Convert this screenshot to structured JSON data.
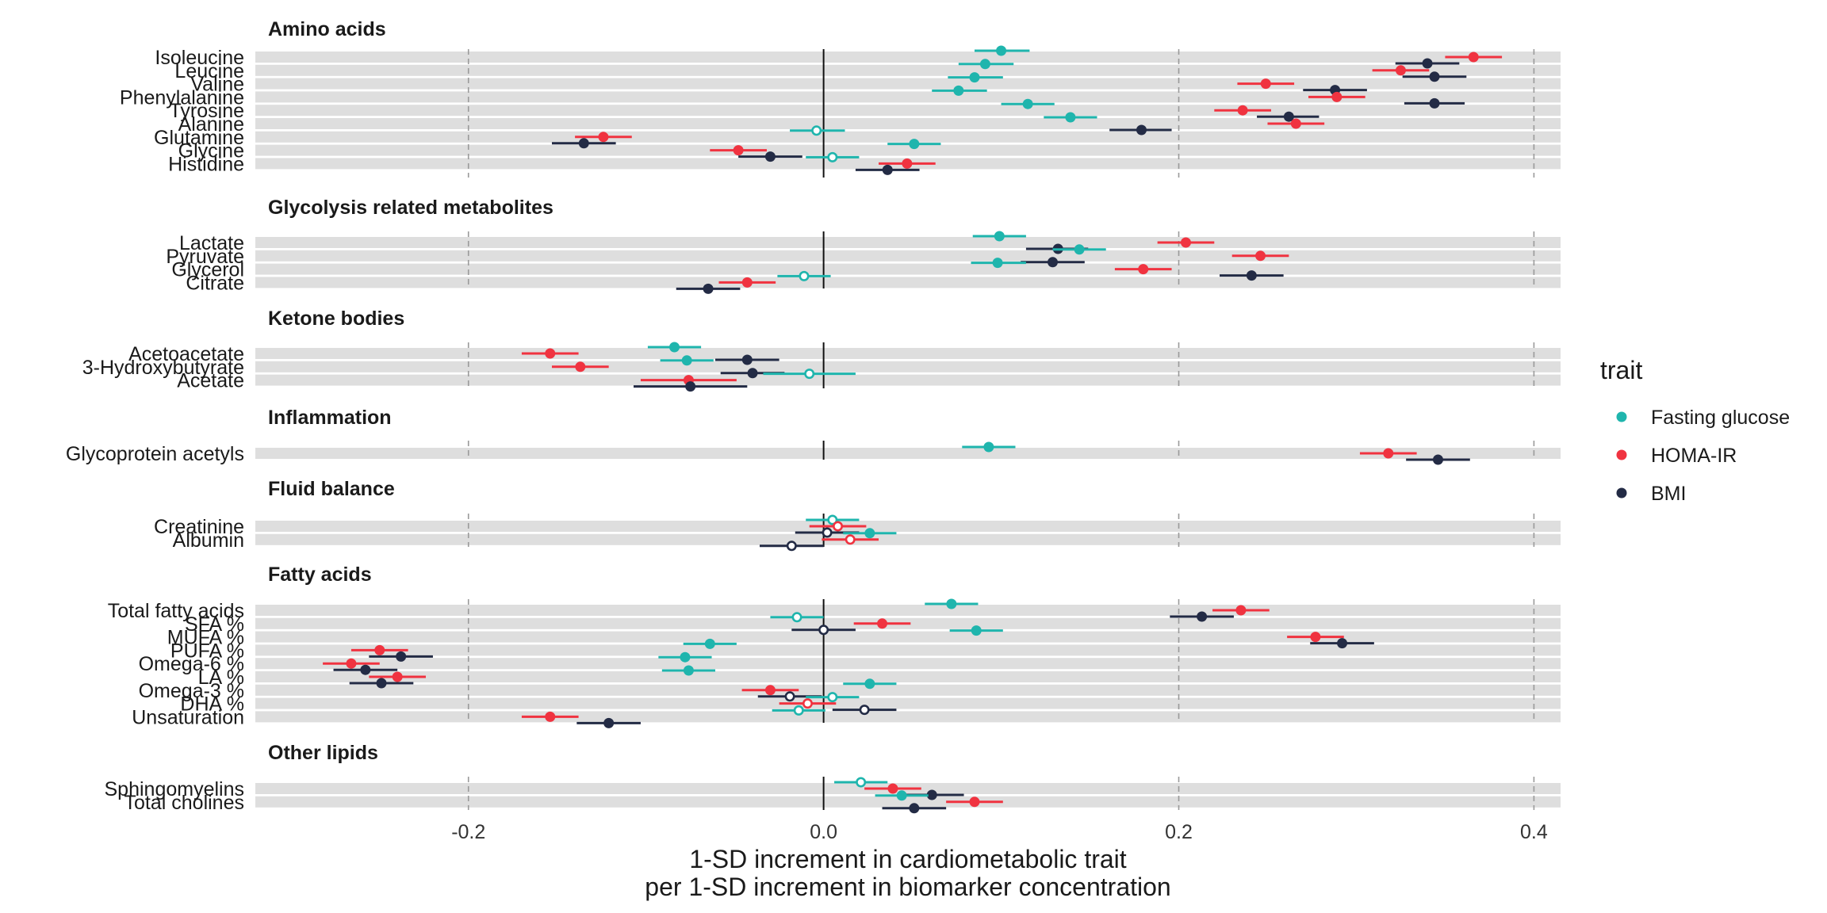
{
  "chart_data": {
    "type": "scatter",
    "subtype": "forest-plot",
    "xlabel": [
      "1-SD increment in cardiometabolic trait",
      "per 1-SD increment in biomarker concentration"
    ],
    "xlim": [
      -0.32,
      0.415
    ],
    "xticks": [
      -0.2,
      0.0,
      0.2,
      0.4
    ],
    "xtick_labels": [
      "-0.2",
      "0.0",
      "0.2",
      "0.4"
    ],
    "grid": "vertical dashed major gridlines; solid line at 0",
    "legend": {
      "title": "trait",
      "position": "right",
      "items": [
        {
          "name": "Fasting glucose",
          "color": "#1fb5ad"
        },
        {
          "name": "HOMA-IR",
          "color": "#f03340"
        },
        {
          "name": "BMI",
          "color": "#232b45"
        }
      ]
    },
    "marker_note": "filled dot = significant, hollow dot = not significant",
    "panels": [
      {
        "title": "Amino acids",
        "rows": [
          {
            "label": "Isoleucine",
            "values": [
              {
                "est": 0.1,
                "lo": 0.085,
                "hi": 0.116,
                "filled": true
              },
              {
                "est": 0.366,
                "lo": 0.35,
                "hi": 0.382,
                "filled": true
              },
              {
                "est": 0.34,
                "lo": 0.322,
                "hi": 0.358,
                "filled": true
              }
            ]
          },
          {
            "label": "Leucine",
            "values": [
              {
                "est": 0.091,
                "lo": 0.076,
                "hi": 0.107,
                "filled": true
              },
              {
                "est": 0.325,
                "lo": 0.309,
                "hi": 0.341,
                "filled": true
              },
              {
                "est": 0.344,
                "lo": 0.326,
                "hi": 0.362,
                "filled": true
              }
            ]
          },
          {
            "label": "Valine",
            "values": [
              {
                "est": 0.085,
                "lo": 0.07,
                "hi": 0.101,
                "filled": true
              },
              {
                "est": 0.249,
                "lo": 0.233,
                "hi": 0.265,
                "filled": true
              },
              {
                "est": 0.288,
                "lo": 0.27,
                "hi": 0.306,
                "filled": true
              }
            ]
          },
          {
            "label": "Phenylalanine",
            "values": [
              {
                "est": 0.076,
                "lo": 0.061,
                "hi": 0.092,
                "filled": true
              },
              {
                "est": 0.289,
                "lo": 0.273,
                "hi": 0.305,
                "filled": true
              },
              {
                "est": 0.344,
                "lo": 0.327,
                "hi": 0.361,
                "filled": true
              }
            ]
          },
          {
            "label": "Tyrosine",
            "values": [
              {
                "est": 0.115,
                "lo": 0.1,
                "hi": 0.13,
                "filled": true
              },
              {
                "est": 0.236,
                "lo": 0.22,
                "hi": 0.252,
                "filled": true
              },
              {
                "est": 0.262,
                "lo": 0.244,
                "hi": 0.279,
                "filled": true
              }
            ]
          },
          {
            "label": "Alanine",
            "values": [
              {
                "est": 0.139,
                "lo": 0.124,
                "hi": 0.154,
                "filled": true
              },
              {
                "est": 0.266,
                "lo": 0.25,
                "hi": 0.282,
                "filled": true
              },
              {
                "est": 0.179,
                "lo": 0.161,
                "hi": 0.196,
                "filled": true
              }
            ]
          },
          {
            "label": "Glutamine",
            "values": [
              {
                "est": -0.004,
                "lo": -0.019,
                "hi": 0.012,
                "filled": false
              },
              {
                "est": -0.124,
                "lo": -0.14,
                "hi": -0.108,
                "filled": true
              },
              {
                "est": -0.135,
                "lo": -0.153,
                "hi": -0.117,
                "filled": true
              }
            ]
          },
          {
            "label": "Glycine",
            "values": [
              {
                "est": 0.051,
                "lo": 0.036,
                "hi": 0.066,
                "filled": true
              },
              {
                "est": -0.048,
                "lo": -0.064,
                "hi": -0.032,
                "filled": true
              },
              {
                "est": -0.03,
                "lo": -0.048,
                "hi": -0.012,
                "filled": true
              }
            ]
          },
          {
            "label": "Histidine",
            "values": [
              {
                "est": 0.005,
                "lo": -0.01,
                "hi": 0.02,
                "filled": false
              },
              {
                "est": 0.047,
                "lo": 0.031,
                "hi": 0.063,
                "filled": true
              },
              {
                "est": 0.036,
                "lo": 0.018,
                "hi": 0.054,
                "filled": true
              }
            ]
          }
        ]
      },
      {
        "title": "Glycolysis related metabolites",
        "rows": [
          {
            "label": "Lactate",
            "values": [
              {
                "est": 0.099,
                "lo": 0.084,
                "hi": 0.114,
                "filled": true
              },
              {
                "est": 0.204,
                "lo": 0.188,
                "hi": 0.22,
                "filled": true
              },
              {
                "est": 0.132,
                "lo": 0.114,
                "hi": 0.149,
                "filled": true
              }
            ]
          },
          {
            "label": "Pyruvate",
            "values": [
              {
                "est": 0.144,
                "lo": 0.129,
                "hi": 0.159,
                "filled": true
              },
              {
                "est": 0.246,
                "lo": 0.23,
                "hi": 0.262,
                "filled": true
              },
              {
                "est": 0.129,
                "lo": 0.111,
                "hi": 0.147,
                "filled": true
              }
            ]
          },
          {
            "label": "Glycerol",
            "values": [
              {
                "est": 0.098,
                "lo": 0.083,
                "hi": 0.114,
                "filled": true
              },
              {
                "est": 0.18,
                "lo": 0.164,
                "hi": 0.196,
                "filled": true
              },
              {
                "est": 0.241,
                "lo": 0.223,
                "hi": 0.259,
                "filled": true
              }
            ]
          },
          {
            "label": "Citrate",
            "values": [
              {
                "est": -0.011,
                "lo": -0.026,
                "hi": 0.004,
                "filled": false
              },
              {
                "est": -0.043,
                "lo": -0.059,
                "hi": -0.027,
                "filled": true
              },
              {
                "est": -0.065,
                "lo": -0.083,
                "hi": -0.047,
                "filled": true
              }
            ]
          }
        ]
      },
      {
        "title": "Ketone bodies",
        "rows": [
          {
            "label": "Acetoacetate",
            "values": [
              {
                "est": -0.084,
                "lo": -0.099,
                "hi": -0.069,
                "filled": true
              },
              {
                "est": -0.154,
                "lo": -0.17,
                "hi": -0.138,
                "filled": true
              },
              {
                "est": -0.043,
                "lo": -0.061,
                "hi": -0.025,
                "filled": true
              }
            ]
          },
          {
            "label": "3-Hydroxybutyrate",
            "values": [
              {
                "est": -0.077,
                "lo": -0.092,
                "hi": -0.062,
                "filled": true
              },
              {
                "est": -0.137,
                "lo": -0.153,
                "hi": -0.121,
                "filled": true
              },
              {
                "est": -0.04,
                "lo": -0.058,
                "hi": -0.022,
                "filled": true
              }
            ]
          },
          {
            "label": "Acetate",
            "values": [
              {
                "est": -0.008,
                "lo": -0.034,
                "hi": 0.018,
                "filled": false
              },
              {
                "est": -0.076,
                "lo": -0.103,
                "hi": -0.049,
                "filled": true
              },
              {
                "est": -0.075,
                "lo": -0.107,
                "hi": -0.043,
                "filled": true
              }
            ]
          }
        ]
      },
      {
        "title": "Inflammation",
        "rows": [
          {
            "label": "Glycoprotein acetyls",
            "values": [
              {
                "est": 0.093,
                "lo": 0.078,
                "hi": 0.108,
                "filled": true
              },
              {
                "est": 0.318,
                "lo": 0.302,
                "hi": 0.334,
                "filled": true
              },
              {
                "est": 0.346,
                "lo": 0.328,
                "hi": 0.364,
                "filled": true
              }
            ]
          }
        ]
      },
      {
        "title": "Fluid balance",
        "rows": [
          {
            "label": "Creatinine",
            "values": [
              {
                "est": 0.005,
                "lo": -0.01,
                "hi": 0.02,
                "filled": false
              },
              {
                "est": 0.008,
                "lo": -0.008,
                "hi": 0.024,
                "filled": false
              },
              {
                "est": 0.002,
                "lo": -0.016,
                "hi": 0.02,
                "filled": false
              }
            ]
          },
          {
            "label": "Albumin",
            "values": [
              {
                "est": 0.026,
                "lo": 0.011,
                "hi": 0.041,
                "filled": true
              },
              {
                "est": 0.015,
                "lo": -0.001,
                "hi": 0.031,
                "filled": false
              },
              {
                "est": -0.018,
                "lo": -0.036,
                "hi": 0.0,
                "filled": false
              }
            ]
          }
        ]
      },
      {
        "title": "Fatty acids",
        "rows": [
          {
            "label": "Total fatty acids",
            "values": [
              {
                "est": 0.072,
                "lo": 0.057,
                "hi": 0.087,
                "filled": true
              },
              {
                "est": 0.235,
                "lo": 0.219,
                "hi": 0.251,
                "filled": true
              },
              {
                "est": 0.213,
                "lo": 0.195,
                "hi": 0.231,
                "filled": true
              }
            ]
          },
          {
            "label": "SFA %",
            "values": [
              {
                "est": -0.015,
                "lo": -0.03,
                "hi": 0.0,
                "filled": false
              },
              {
                "est": 0.033,
                "lo": 0.017,
                "hi": 0.049,
                "filled": true
              },
              {
                "est": 0.0,
                "lo": -0.018,
                "hi": 0.018,
                "filled": false
              }
            ]
          },
          {
            "label": "MUFA %",
            "values": [
              {
                "est": 0.086,
                "lo": 0.071,
                "hi": 0.101,
                "filled": true
              },
              {
                "est": 0.277,
                "lo": 0.261,
                "hi": 0.293,
                "filled": true
              },
              {
                "est": 0.292,
                "lo": 0.274,
                "hi": 0.31,
                "filled": true
              }
            ]
          },
          {
            "label": "PUFA %",
            "values": [
              {
                "est": -0.064,
                "lo": -0.079,
                "hi": -0.049,
                "filled": true
              },
              {
                "est": -0.25,
                "lo": -0.266,
                "hi": -0.234,
                "filled": true
              },
              {
                "est": -0.238,
                "lo": -0.256,
                "hi": -0.22,
                "filled": true
              }
            ]
          },
          {
            "label": "Omega-6 %",
            "values": [
              {
                "est": -0.078,
                "lo": -0.093,
                "hi": -0.063,
                "filled": true
              },
              {
                "est": -0.266,
                "lo": -0.282,
                "hi": -0.25,
                "filled": true
              },
              {
                "est": -0.258,
                "lo": -0.276,
                "hi": -0.24,
                "filled": true
              }
            ]
          },
          {
            "label": "LA %",
            "values": [
              {
                "est": -0.076,
                "lo": -0.091,
                "hi": -0.061,
                "filled": true
              },
              {
                "est": -0.24,
                "lo": -0.256,
                "hi": -0.224,
                "filled": true
              },
              {
                "est": -0.249,
                "lo": -0.267,
                "hi": -0.231,
                "filled": true
              }
            ]
          },
          {
            "label": "Omega-3 %",
            "values": [
              {
                "est": 0.026,
                "lo": 0.011,
                "hi": 0.041,
                "filled": true
              },
              {
                "est": -0.03,
                "lo": -0.046,
                "hi": -0.014,
                "filled": true
              },
              {
                "est": -0.019,
                "lo": -0.037,
                "hi": -0.001,
                "filled": false
              }
            ]
          },
          {
            "label": "DHA %",
            "values": [
              {
                "est": 0.005,
                "lo": -0.01,
                "hi": 0.02,
                "filled": false
              },
              {
                "est": -0.009,
                "lo": -0.025,
                "hi": 0.007,
                "filled": false
              },
              {
                "est": 0.023,
                "lo": 0.005,
                "hi": 0.041,
                "filled": false
              }
            ]
          },
          {
            "label": "Unsaturation",
            "values": [
              {
                "est": -0.014,
                "lo": -0.029,
                "hi": 0.001,
                "filled": false
              },
              {
                "est": -0.154,
                "lo": -0.17,
                "hi": -0.138,
                "filled": true
              },
              {
                "est": -0.121,
                "lo": -0.139,
                "hi": -0.103,
                "filled": true
              }
            ]
          }
        ]
      },
      {
        "title": "Other lipids",
        "rows": [
          {
            "label": "Sphingomyelins",
            "values": [
              {
                "est": 0.021,
                "lo": 0.006,
                "hi": 0.036,
                "filled": false
              },
              {
                "est": 0.039,
                "lo": 0.023,
                "hi": 0.055,
                "filled": true
              },
              {
                "est": 0.061,
                "lo": 0.043,
                "hi": 0.079,
                "filled": true
              }
            ]
          },
          {
            "label": "Total cholines",
            "values": [
              {
                "est": 0.044,
                "lo": 0.029,
                "hi": 0.059,
                "filled": true
              },
              {
                "est": 0.085,
                "lo": 0.069,
                "hi": 0.101,
                "filled": true
              },
              {
                "est": 0.051,
                "lo": 0.033,
                "hi": 0.069,
                "filled": true
              }
            ]
          }
        ]
      }
    ]
  }
}
